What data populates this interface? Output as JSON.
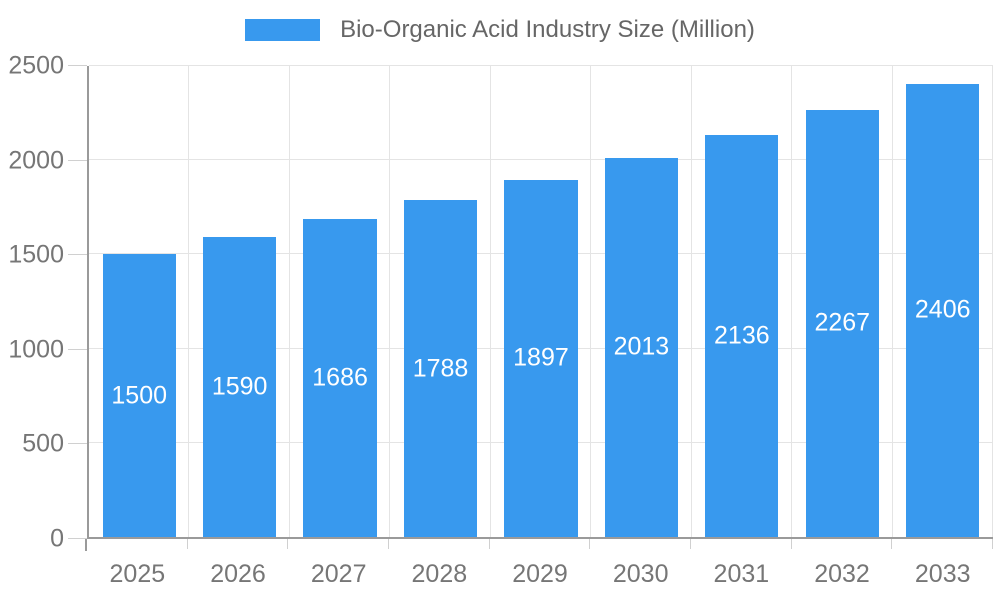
{
  "chart_data": {
    "type": "bar",
    "title": "Bio-Organic Acid Industry Size (Million)",
    "categories": [
      "2025",
      "2026",
      "2027",
      "2028",
      "2029",
      "2030",
      "2031",
      "2032",
      "2033"
    ],
    "values": [
      1500,
      1590,
      1686,
      1788,
      1897,
      2013,
      2136,
      2267,
      2406
    ],
    "xlabel": "",
    "ylabel": "",
    "ylim": [
      0,
      2500
    ],
    "yticks": [
      0,
      500,
      1000,
      1500,
      2000,
      2500
    ],
    "grid": true,
    "legend_position": "top",
    "bar_label_position": "center-inside",
    "colors": {
      "bar": "#3899ee",
      "bar_label": "#ffffff",
      "axis": "#9a9a9a",
      "grid": "#e4e4e4",
      "tick_mark": "#d0d0d0",
      "tick_text": "#767676",
      "title_text": "#666666",
      "background": "#ffffff"
    }
  }
}
